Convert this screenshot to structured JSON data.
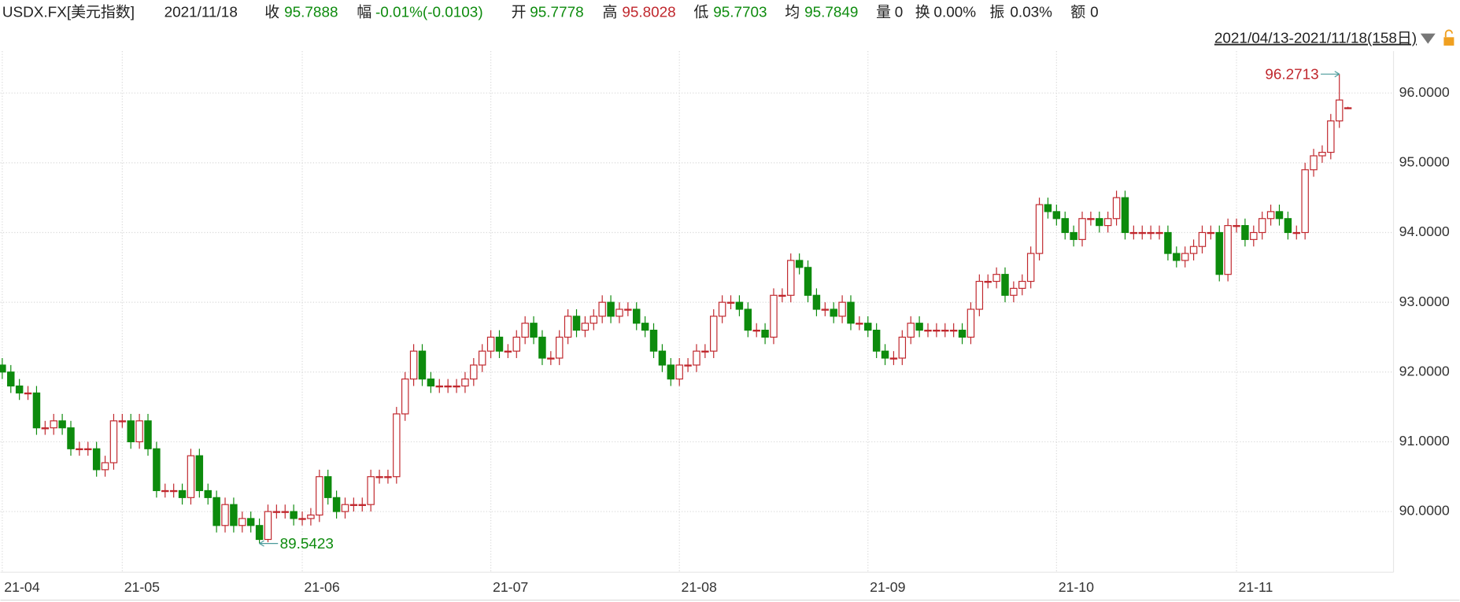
{
  "header": {
    "symbol": "USDX.FX[美元指数]",
    "date": "2021/11/18",
    "close_label": "收",
    "change_label": "幅",
    "change": "-0.01%(-0.0103)",
    "open_label": "开",
    "high_label": "高",
    "low_label": "低",
    "avg_label": "均",
    "avg": 95.7849,
    "volume_label": "量",
    "volume": 0,
    "turnover_label": "换",
    "turnover": "0.00%",
    "amplitude_label": "振",
    "amplitude": "0.03%",
    "amount_label": "额",
    "amount": 0
  },
  "chart_data": {
    "type": "candlestick",
    "range_label": "2021/04/13-2021/11/18(158日)",
    "up_color": "#c0272d",
    "down_color": "#0d8b0d",
    "grid": true,
    "ylim": [
      89.13,
      96.6
    ],
    "yticks": [
      {
        "value": 90,
        "label": "90.0000"
      },
      {
        "value": 91,
        "label": "91.0000"
      },
      {
        "value": 92,
        "label": "92.0000"
      },
      {
        "value": 93,
        "label": "93.0000"
      },
      {
        "value": 94,
        "label": "94.0000"
      },
      {
        "value": 95,
        "label": "95.0000"
      },
      {
        "value": 96,
        "label": "96.0000"
      }
    ],
    "categories": [
      "21-04",
      null,
      null,
      null,
      null,
      null,
      null,
      null,
      null,
      null,
      null,
      null,
      null,
      null,
      "21-05",
      null,
      null,
      null,
      null,
      null,
      null,
      null,
      null,
      null,
      null,
      null,
      null,
      null,
      null,
      null,
      null,
      null,
      null,
      null,
      null,
      "21-06",
      null,
      null,
      null,
      null,
      null,
      null,
      null,
      null,
      null,
      null,
      null,
      null,
      null,
      null,
      null,
      null,
      null,
      null,
      null,
      null,
      null,
      "21-07",
      null,
      null,
      null,
      null,
      null,
      null,
      null,
      null,
      null,
      null,
      null,
      null,
      null,
      null,
      null,
      null,
      null,
      null,
      null,
      null,
      null,
      "21-08",
      null,
      null,
      null,
      null,
      null,
      null,
      null,
      null,
      null,
      null,
      null,
      null,
      null,
      null,
      null,
      null,
      null,
      null,
      null,
      null,
      null,
      "21-09",
      null,
      null,
      null,
      null,
      null,
      null,
      null,
      null,
      null,
      null,
      null,
      null,
      null,
      null,
      null,
      null,
      null,
      null,
      null,
      null,
      null,
      "21-10",
      null,
      null,
      null,
      null,
      null,
      null,
      null,
      null,
      null,
      null,
      null,
      null,
      null,
      null,
      null,
      null,
      null,
      null,
      null,
      null,
      "21-11",
      null,
      null,
      null,
      null,
      null,
      null,
      null,
      null,
      null,
      null,
      null,
      null,
      null
    ],
    "open": [
      92.1,
      92.0,
      91.8,
      91.7,
      91.7,
      91.2,
      91.2,
      91.3,
      91.2,
      90.9,
      90.9,
      90.9,
      90.6,
      90.7,
      91.3,
      91.3,
      91.0,
      91.3,
      90.9,
      90.3,
      90.3,
      90.3,
      90.2,
      90.8,
      90.3,
      90.2,
      89.8,
      90.1,
      89.8,
      89.9,
      89.8,
      89.6,
      90.0,
      90.0,
      90.0,
      89.9,
      89.9,
      89.95,
      90.5,
      90.2,
      90.0,
      90.1,
      90.1,
      90.1,
      90.5,
      90.5,
      90.5,
      91.4,
      91.9,
      92.3,
      91.9,
      91.8,
      91.8,
      91.8,
      91.8,
      91.9,
      92.1,
      92.3,
      92.5,
      92.3,
      92.3,
      92.5,
      92.7,
      92.5,
      92.2,
      92.2,
      92.5,
      92.8,
      92.6,
      92.7,
      92.8,
      93.0,
      92.8,
      92.9,
      92.9,
      92.7,
      92.6,
      92.3,
      92.1,
      91.9,
      92.1,
      92.1,
      92.3,
      92.3,
      92.8,
      93.0,
      93.0,
      92.9,
      92.6,
      92.6,
      92.5,
      93.1,
      93.1,
      93.6,
      93.5,
      93.1,
      92.9,
      92.9,
      92.8,
      93.0,
      92.7,
      92.7,
      92.6,
      92.3,
      92.2,
      92.2,
      92.5,
      92.7,
      92.6,
      92.6,
      92.6,
      92.6,
      92.6,
      92.5,
      92.9,
      93.3,
      93.3,
      93.4,
      93.1,
      93.2,
      93.3,
      93.7,
      94.4,
      94.3,
      94.2,
      94.0,
      93.9,
      94.2,
      94.2,
      94.1,
      94.2,
      94.5,
      94.0,
      94.0,
      94.0,
      94.0,
      94.0,
      93.7,
      93.6,
      93.7,
      93.8,
      94.0,
      94.0,
      93.4,
      94.1,
      94.1,
      93.9,
      94.0,
      94.2,
      94.3,
      94.2,
      94.0,
      94.0,
      94.9,
      95.1,
      95.15,
      95.6,
      95.7778
    ],
    "high": [
      92.2,
      92.1,
      91.9,
      91.8,
      91.8,
      91.3,
      91.4,
      91.4,
      91.3,
      91.0,
      91.0,
      91.0,
      90.8,
      91.4,
      91.4,
      91.4,
      91.4,
      91.4,
      91.0,
      90.4,
      90.4,
      90.4,
      90.9,
      90.9,
      90.4,
      90.3,
      90.2,
      90.2,
      90.0,
      90.0,
      89.9,
      90.1,
      90.1,
      90.1,
      90.1,
      90.0,
      90.05,
      90.6,
      90.6,
      90.3,
      90.2,
      90.2,
      90.2,
      90.6,
      90.6,
      90.6,
      91.5,
      92.0,
      92.4,
      92.4,
      92.0,
      91.9,
      91.9,
      91.9,
      92.0,
      92.2,
      92.4,
      92.6,
      92.6,
      92.4,
      92.6,
      92.8,
      92.8,
      92.6,
      92.3,
      92.6,
      92.9,
      92.9,
      92.8,
      92.9,
      93.1,
      93.1,
      93.0,
      93.0,
      93.0,
      92.8,
      92.7,
      92.4,
      92.2,
      92.2,
      92.2,
      92.4,
      92.4,
      92.9,
      93.1,
      93.1,
      93.1,
      93.0,
      92.7,
      92.7,
      93.2,
      93.2,
      93.7,
      93.7,
      93.6,
      93.2,
      93.0,
      93.0,
      93.1,
      93.1,
      92.8,
      92.8,
      92.7,
      92.4,
      92.3,
      92.6,
      92.8,
      92.8,
      92.7,
      92.7,
      92.7,
      92.7,
      92.7,
      93.0,
      93.4,
      93.4,
      93.5,
      93.5,
      93.3,
      93.4,
      93.8,
      94.5,
      94.5,
      94.4,
      94.3,
      94.1,
      94.3,
      94.3,
      94.3,
      94.3,
      94.6,
      94.6,
      94.1,
      94.1,
      94.1,
      94.1,
      94.1,
      93.8,
      93.8,
      93.9,
      94.1,
      94.1,
      94.1,
      94.2,
      94.2,
      94.2,
      94.1,
      94.3,
      94.4,
      94.4,
      94.3,
      94.1,
      95.0,
      95.2,
      95.25,
      95.7,
      96.2713,
      95.8028
    ],
    "low": [
      91.9,
      91.7,
      91.6,
      91.6,
      91.1,
      91.1,
      91.1,
      91.1,
      90.8,
      90.8,
      90.8,
      90.5,
      90.5,
      90.6,
      91.2,
      90.9,
      90.9,
      90.8,
      90.2,
      90.2,
      90.2,
      90.1,
      90.1,
      90.2,
      90.1,
      89.7,
      89.7,
      89.7,
      89.7,
      89.7,
      89.5423,
      89.56,
      89.9,
      89.9,
      89.8,
      89.8,
      89.8,
      89.85,
      90.1,
      89.9,
      89.9,
      90.0,
      90.0,
      90.0,
      90.4,
      90.4,
      90.4,
      91.3,
      91.8,
      91.8,
      91.7,
      91.7,
      91.7,
      91.7,
      91.7,
      91.8,
      92.0,
      92.2,
      92.2,
      92.2,
      92.2,
      92.4,
      92.4,
      92.1,
      92.1,
      92.1,
      92.4,
      92.5,
      92.5,
      92.6,
      92.7,
      92.7,
      92.7,
      92.8,
      92.6,
      92.5,
      92.2,
      92.0,
      91.8,
      91.8,
      92.0,
      92.0,
      92.2,
      92.2,
      92.7,
      92.9,
      92.8,
      92.5,
      92.5,
      92.4,
      92.4,
      93.0,
      93.0,
      93.4,
      93.0,
      92.8,
      92.8,
      92.7,
      92.7,
      92.6,
      92.6,
      92.5,
      92.2,
      92.1,
      92.1,
      92.1,
      92.4,
      92.5,
      92.5,
      92.5,
      92.5,
      92.5,
      92.4,
      92.4,
      92.8,
      93.2,
      93.2,
      93.0,
      93.0,
      93.1,
      93.2,
      93.6,
      94.2,
      94.1,
      93.9,
      93.8,
      93.8,
      94.1,
      94.0,
      94.0,
      94.1,
      93.9,
      93.9,
      93.9,
      93.9,
      93.9,
      93.6,
      93.5,
      93.5,
      93.6,
      93.7,
      93.9,
      93.3,
      93.3,
      94.0,
      93.8,
      93.8,
      93.9,
      94.1,
      94.1,
      93.9,
      93.9,
      93.9,
      94.8,
      95.0,
      95.05,
      95.5,
      95.7703
    ],
    "close": [
      92.0,
      91.8,
      91.7,
      91.7,
      91.2,
      91.2,
      91.3,
      91.2,
      90.9,
      90.9,
      90.9,
      90.6,
      90.7,
      91.3,
      91.3,
      91.0,
      91.3,
      90.9,
      90.3,
      90.3,
      90.3,
      90.2,
      90.8,
      90.3,
      90.2,
      89.8,
      90.1,
      89.8,
      89.9,
      89.8,
      89.6,
      90.0,
      90.0,
      90.0,
      89.9,
      89.9,
      89.95,
      90.5,
      90.2,
      90.0,
      90.1,
      90.1,
      90.1,
      90.5,
      90.5,
      90.5,
      91.4,
      91.9,
      92.3,
      91.9,
      91.8,
      91.8,
      91.8,
      91.8,
      91.9,
      92.1,
      92.3,
      92.5,
      92.3,
      92.3,
      92.5,
      92.7,
      92.5,
      92.2,
      92.2,
      92.5,
      92.8,
      92.6,
      92.7,
      92.8,
      93.0,
      92.8,
      92.9,
      92.9,
      92.7,
      92.6,
      92.3,
      92.1,
      91.9,
      92.1,
      92.1,
      92.3,
      92.3,
      92.8,
      93.0,
      93.0,
      92.9,
      92.6,
      92.6,
      92.5,
      93.1,
      93.1,
      93.6,
      93.5,
      93.1,
      92.9,
      92.9,
      92.8,
      93.0,
      92.7,
      92.7,
      92.6,
      92.3,
      92.2,
      92.2,
      92.5,
      92.7,
      92.6,
      92.6,
      92.6,
      92.6,
      92.6,
      92.5,
      92.9,
      93.3,
      93.3,
      93.4,
      93.1,
      93.2,
      93.3,
      93.7,
      94.4,
      94.3,
      94.2,
      94.0,
      93.9,
      94.2,
      94.2,
      94.1,
      94.2,
      94.5,
      94.0,
      94.0,
      94.0,
      94.0,
      94.0,
      93.7,
      93.6,
      93.7,
      93.8,
      94.0,
      94.0,
      93.4,
      94.1,
      94.1,
      93.9,
      94.0,
      94.2,
      94.3,
      94.2,
      94.0,
      94.0,
      94.9,
      95.1,
      95.15,
      95.6,
      95.9,
      95.7888
    ]
  }
}
